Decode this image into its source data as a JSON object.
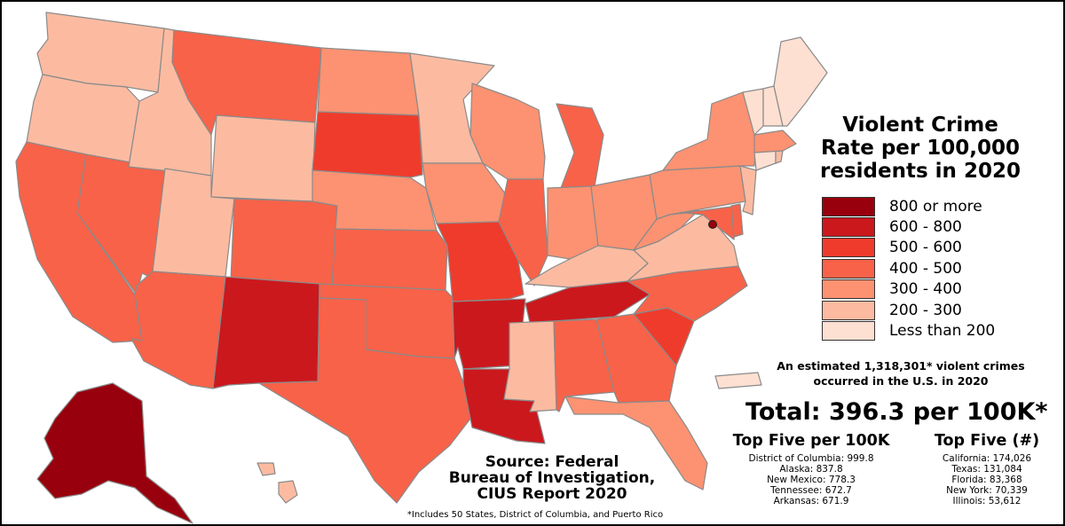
{
  "title": {
    "line1": "Violent Crime",
    "line2": "Rate per 100,000",
    "line3": "residents in 2020"
  },
  "legend": [
    {
      "label": "800 or more",
      "color": "#99000d"
    },
    {
      "label": "600 - 800",
      "color": "#cb181d"
    },
    {
      "label": "500 - 600",
      "color": "#ef3b2c"
    },
    {
      "label": "400 - 500",
      "color": "#f86249"
    },
    {
      "label": "300 - 400",
      "color": "#fc9272"
    },
    {
      "label": "200 - 300",
      "color": "#fcbba1"
    },
    {
      "label": "Less than 200",
      "color": "#fee0d2"
    }
  ],
  "estimate": {
    "line1": "An estimated 1,318,301* violent crimes",
    "line2": "occurred in the U.S. in 2020"
  },
  "total": "Total: 396.3 per 100K*",
  "top_five_rate": {
    "heading": "Top Five per 100K",
    "items": [
      "District of Columbia: 999.8",
      "Alaska: 837.8",
      "New Mexico: 778.3",
      "Tennessee: 672.7",
      "Arkansas: 671.9"
    ]
  },
  "top_five_count": {
    "heading": "Top Five (#)",
    "items": [
      "California: 174,026",
      "Texas: 131,084",
      "Florida: 83,368",
      "New York: 70,339",
      "Illinois: 53,612"
    ]
  },
  "source": {
    "line1": "Source: Federal",
    "line2": "Bureau of Investigation,",
    "line3": "CIUS Report 2020"
  },
  "footnote": "*Includes 50 States, District of Columbia, and Puerto Rico",
  "state_bins": {
    "WA": "200 - 300",
    "OR": "200 - 300",
    "CA": "400 - 500",
    "NV": "400 - 500",
    "ID": "200 - 300",
    "MT": "400 - 500",
    "WY": "200 - 300",
    "UT": "200 - 300",
    "AZ": "400 - 500",
    "CO": "400 - 500",
    "NM": "600 - 800",
    "ND": "300 - 400",
    "SD": "500 - 600",
    "NE": "300 - 400",
    "KS": "400 - 500",
    "OK": "400 - 500",
    "TX": "400 - 500",
    "MN": "200 - 300",
    "IA": "300 - 400",
    "MO": "500 - 600",
    "AR": "600 - 800",
    "LA": "600 - 800",
    "WI": "300 - 400",
    "IL": "400 - 500",
    "MI": "400 - 500",
    "IN": "300 - 400",
    "OH": "300 - 400",
    "KY": "200 - 300",
    "TN": "600 - 800",
    "MS": "200 - 300",
    "AL": "400 - 500",
    "GA": "400 - 500",
    "FL": "300 - 400",
    "SC": "500 - 600",
    "NC": "400 - 500",
    "VA": "200 - 300",
    "WV": "300 - 400",
    "PA": "300 - 400",
    "NY": "300 - 400",
    "MD": "400 - 500",
    "DE": "400 - 500",
    "NJ": "200 - 300",
    "CT": "Less than 200",
    "RI": "200 - 300",
    "MA": "300 - 400",
    "VT": "Less than 200",
    "NH": "Less than 200",
    "ME": "Less than 200",
    "AK": "800 or more",
    "HI": "200 - 300",
    "PR": "Less than 200",
    "DC": "800 or more"
  }
}
